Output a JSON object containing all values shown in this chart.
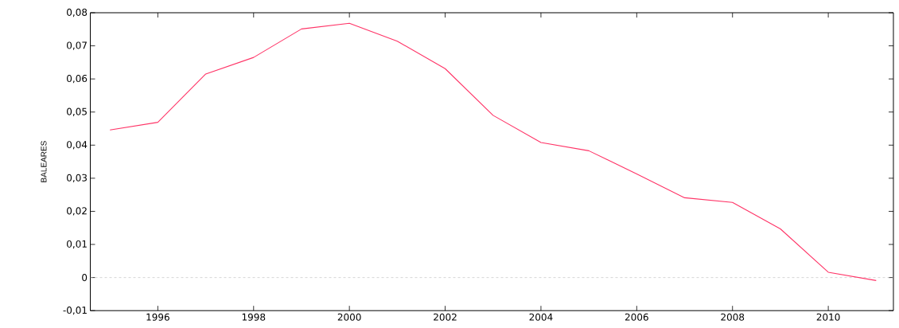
{
  "chart_data": {
    "type": "line",
    "ylabel": "BALEARES",
    "x": [
      1995,
      1996,
      1997,
      1998,
      1999,
      2000,
      2001,
      2002,
      2003,
      2004,
      2005,
      2006,
      2007,
      2008,
      2009,
      2010,
      2011
    ],
    "series": [
      {
        "color": "#ff3366",
        "values": [
          0.0446,
          0.0469,
          0.0615,
          0.0665,
          0.0751,
          0.0768,
          0.0714,
          0.0631,
          0.049,
          0.0408,
          0.0383,
          0.0313,
          0.0241,
          0.0227,
          0.0147,
          0.0016,
          -0.0009
        ]
      }
    ],
    "xlim": [
      1994.59,
      2011.36
    ],
    "xticks": [
      1996,
      1998,
      2000,
      2002,
      2004,
      2006,
      2008,
      2010
    ],
    "ylim": [
      -0.01,
      0.08
    ],
    "yticks": [
      {
        "value": -0.01,
        "label": "-0,01"
      },
      {
        "value": 0,
        "label": "0"
      },
      {
        "value": 0.01,
        "label": "0,01"
      },
      {
        "value": 0.02,
        "label": "0,02"
      },
      {
        "value": 0.03,
        "label": "0,03"
      },
      {
        "value": 0.04,
        "label": "0,04"
      },
      {
        "value": 0.05,
        "label": "0,05"
      },
      {
        "value": 0.06,
        "label": "0,06"
      },
      {
        "value": 0.07,
        "label": "0,07"
      },
      {
        "value": 0.08,
        "label": "0,08"
      }
    ],
    "ref_lines": [
      {
        "axis": "y",
        "value": 0,
        "color": "#bbbbbb",
        "line_style": "dashed"
      }
    ],
    "grid": false,
    "marker": "none",
    "line_style": "solid"
  }
}
